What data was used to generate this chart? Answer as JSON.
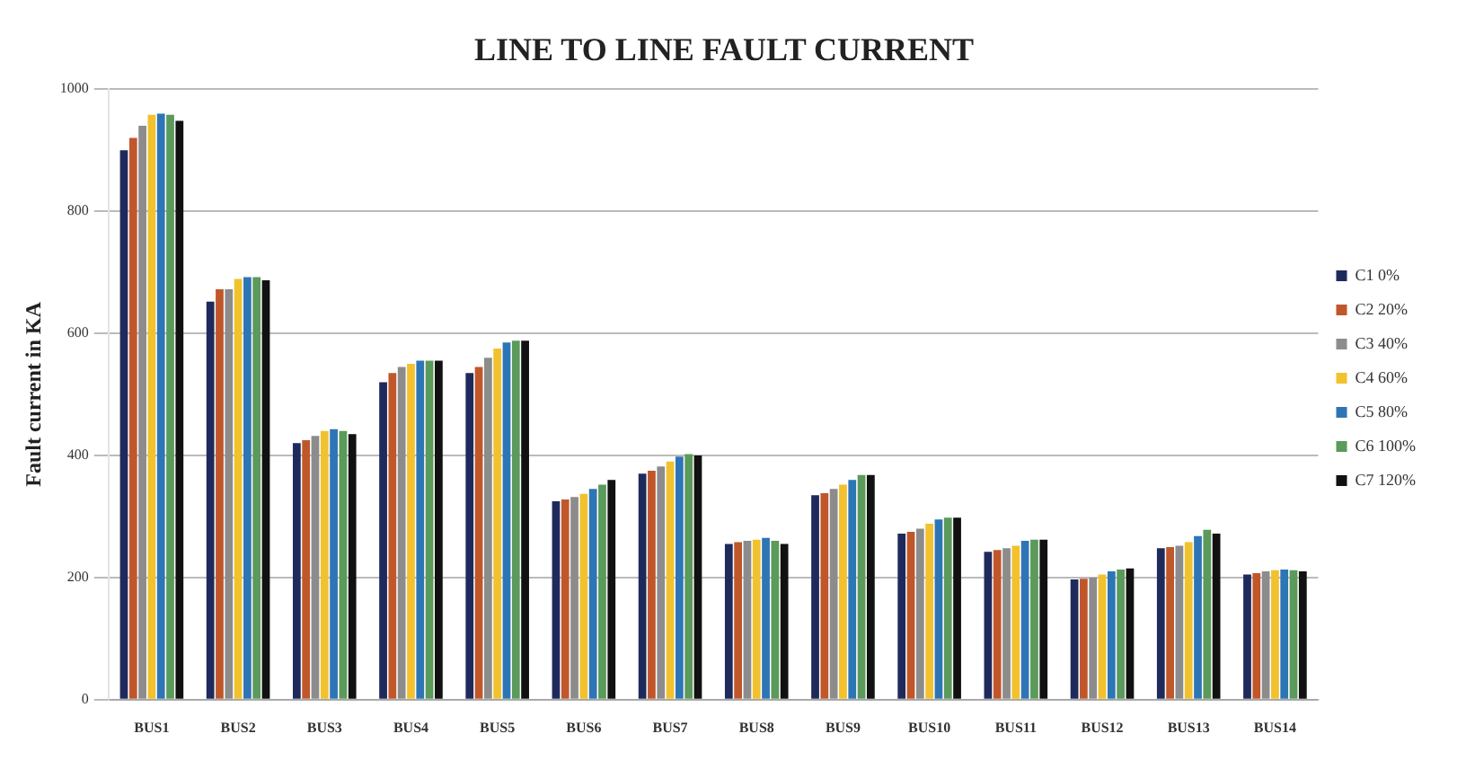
{
  "chart_data": {
    "type": "bar",
    "title": "LINE TO LINE FAULT CURRENT",
    "ylabel": "Fault current in KA",
    "categories": [
      "BUS1",
      "BUS2",
      "BUS3",
      "BUS4",
      "BUS5",
      "BUS6",
      "BUS7",
      "BUS8",
      "BUS9",
      "BUS10",
      "BUS11",
      "BUS12",
      "BUS13",
      "BUS14"
    ],
    "series": [
      {
        "name": "C1 0%",
        "color": "#1f2a5c",
        "values": [
          900,
          652,
          420,
          520,
          535,
          325,
          370,
          255,
          335,
          272,
          242,
          197,
          248,
          205
        ]
      },
      {
        "name": "C2 20%",
        "color": "#c0572b",
        "values": [
          920,
          672,
          425,
          535,
          545,
          328,
          375,
          258,
          338,
          275,
          245,
          198,
          250,
          207
        ]
      },
      {
        "name": "C3 40%",
        "color": "#8c8c8c",
        "values": [
          940,
          672,
          432,
          545,
          560,
          332,
          382,
          260,
          345,
          280,
          248,
          200,
          252,
          210
        ]
      },
      {
        "name": "C4 60%",
        "color": "#f2c12e",
        "values": [
          958,
          689,
          440,
          550,
          575,
          337,
          390,
          262,
          352,
          288,
          252,
          205,
          258,
          212
        ]
      },
      {
        "name": "C5 80%",
        "color": "#2e75b6",
        "values": [
          960,
          692,
          443,
          555,
          585,
          345,
          398,
          265,
          360,
          295,
          260,
          210,
          268,
          213
        ]
      },
      {
        "name": "C6 100%",
        "color": "#5a9a5a",
        "values": [
          958,
          692,
          440,
          555,
          588,
          352,
          402,
          260,
          368,
          298,
          262,
          213,
          278,
          212
        ]
      },
      {
        "name": "C7 120%",
        "color": "#111111",
        "values": [
          948,
          687,
          435,
          555,
          588,
          360,
          400,
          255,
          368,
          298,
          262,
          215,
          272,
          210
        ]
      }
    ],
    "ylim": [
      0,
      1000
    ],
    "yticks": [
      0,
      200,
      400,
      600,
      800,
      1000
    ],
    "grid": "y",
    "legend": "right"
  }
}
